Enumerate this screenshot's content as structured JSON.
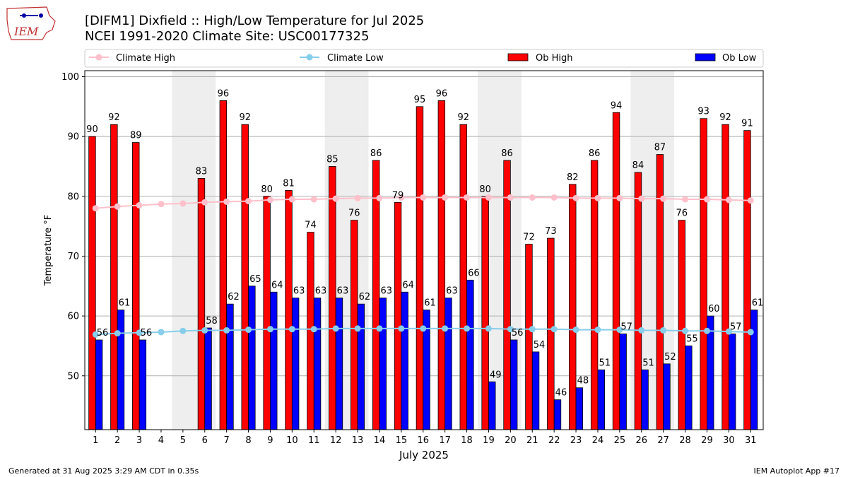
{
  "header": {
    "title_line1": "[DIFM1] Dixfield :: High/Low Temperature for Jul 2025",
    "title_line2": "NCEI 1991-2020 Climate Site: USC00177325"
  },
  "logo": {
    "text": "IEM"
  },
  "footer": {
    "generated": "Generated at 31 Aug 2025 3:29 AM CDT in 0.35s",
    "app": "IEM Autoplot App #17"
  },
  "colors": {
    "ob_high": "#ff0000",
    "ob_low": "#0000ff",
    "climate_high": "#ffc0cb",
    "climate_low": "#87ceeb",
    "weekend_shade": "#eeeeee"
  },
  "chart_data": {
    "type": "bar",
    "xlabel": "July 2025",
    "ylabel": "Temperature °F",
    "ylim": [
      41,
      101
    ],
    "yticks": [
      50,
      60,
      70,
      80,
      90,
      100
    ],
    "grid": true,
    "legend_position": "top",
    "categories": [
      1,
      2,
      3,
      4,
      5,
      6,
      7,
      8,
      9,
      10,
      11,
      12,
      13,
      14,
      15,
      16,
      17,
      18,
      19,
      20,
      21,
      22,
      23,
      24,
      25,
      26,
      27,
      28,
      29,
      30,
      31
    ],
    "shaded_days": [
      [
        5,
        6
      ],
      [
        12,
        13
      ],
      [
        19,
        20
      ],
      [
        26,
        27
      ]
    ],
    "legend": [
      {
        "key": "climate_high",
        "label": "Climate High",
        "kind": "line"
      },
      {
        "key": "climate_low",
        "label": "Climate Low",
        "kind": "line"
      },
      {
        "key": "ob_high",
        "label": "Ob High",
        "kind": "bar"
      },
      {
        "key": "ob_low",
        "label": "Ob Low",
        "kind": "bar"
      }
    ],
    "series": [
      {
        "name": "Ob High",
        "key": "ob_high",
        "values": [
          90,
          92,
          89,
          null,
          null,
          83,
          96,
          92,
          80,
          81,
          74,
          85,
          76,
          86,
          79,
          95,
          96,
          92,
          80,
          86,
          72,
          73,
          82,
          86,
          94,
          84,
          87,
          76,
          93,
          92,
          91
        ]
      },
      {
        "name": "Ob Low",
        "key": "ob_low",
        "values": [
          56,
          61,
          56,
          null,
          null,
          58,
          62,
          65,
          64,
          63,
          63,
          63,
          62,
          63,
          64,
          61,
          63,
          66,
          49,
          56,
          54,
          46,
          48,
          51,
          57,
          51,
          52,
          55,
          60,
          57,
          61
        ]
      },
      {
        "name": "Climate High",
        "key": "climate_high",
        "values": [
          78.0,
          78.3,
          78.5,
          78.7,
          78.8,
          79.0,
          79.1,
          79.2,
          79.4,
          79.5,
          79.5,
          79.6,
          79.7,
          79.7,
          79.8,
          79.8,
          79.8,
          79.8,
          79.8,
          79.8,
          79.8,
          79.8,
          79.7,
          79.7,
          79.7,
          79.6,
          79.6,
          79.5,
          79.5,
          79.4,
          79.3
        ]
      },
      {
        "name": "Climate Low",
        "key": "climate_low",
        "values": [
          56.9,
          57.1,
          57.2,
          57.3,
          57.5,
          57.6,
          57.6,
          57.7,
          57.8,
          57.8,
          57.8,
          57.9,
          57.9,
          57.9,
          57.9,
          57.9,
          57.9,
          57.9,
          57.9,
          57.8,
          57.8,
          57.8,
          57.7,
          57.7,
          57.7,
          57.6,
          57.6,
          57.5,
          57.5,
          57.4,
          57.3
        ]
      }
    ]
  }
}
